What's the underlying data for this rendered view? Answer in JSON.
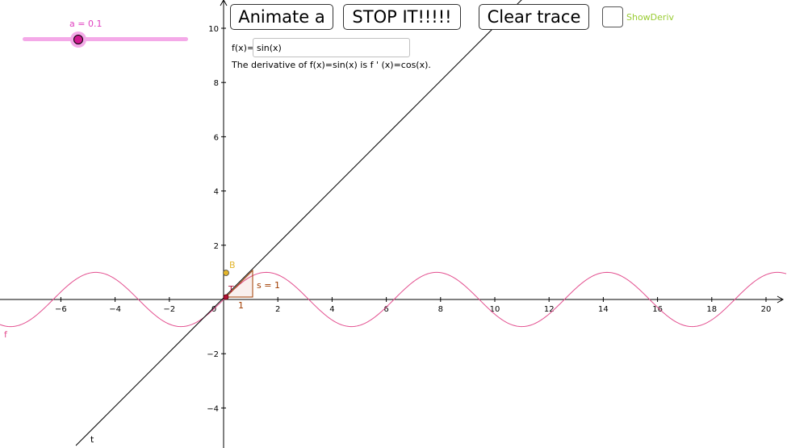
{
  "slider": {
    "label": "a = 0.1",
    "value": 0.1
  },
  "buttons": {
    "animate": "Animate a",
    "stop": "STOP IT!!!!!",
    "clear_trace": "Clear trace"
  },
  "checkbox": {
    "label": "ShowDeriv",
    "checked": false
  },
  "function_input": {
    "label": "f(x)=",
    "value": "sin(x)"
  },
  "derivative_text": "The derivative of f(x)=sin(x) is f ' (x)=cos(x).",
  "graph": {
    "x_ticks": [
      "−6",
      "−4",
      "−2",
      "0",
      "2",
      "4",
      "6",
      "8",
      "10",
      "12",
      "14",
      "16",
      "18",
      "20"
    ],
    "y_ticks": [
      "−4",
      "−2",
      "2",
      "4",
      "6",
      "8",
      "10"
    ],
    "labels": {
      "function": "f",
      "tangent": "t",
      "point_b": "B",
      "point_t": "T",
      "slope": "s = 1",
      "run": "1"
    },
    "colors": {
      "function": "#e34f8f",
      "tangent": "#000000",
      "point_b": "#e3b52b",
      "slope_triangle": "#a03c00",
      "slider": "#f4a9e8",
      "checkbox_label": "#99cc33"
    }
  }
}
